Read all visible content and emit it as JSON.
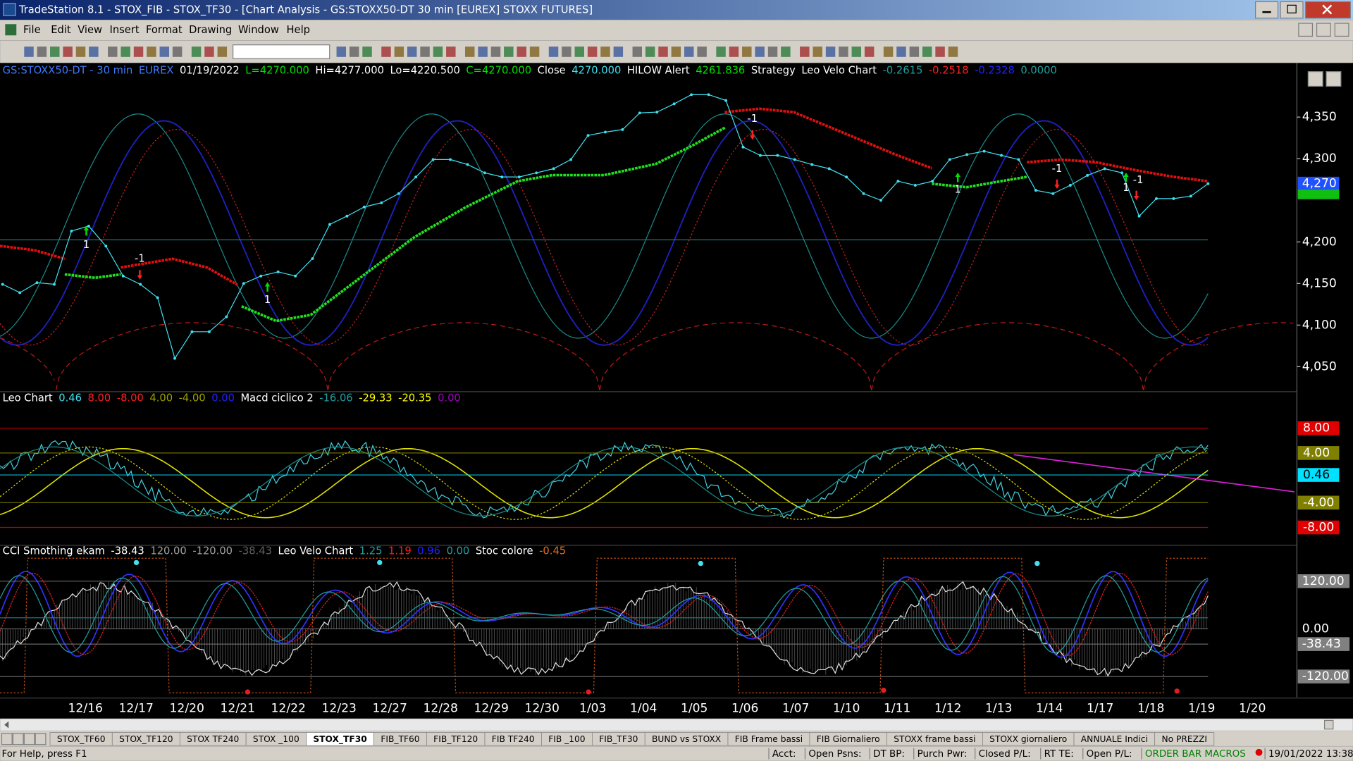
{
  "window": {
    "title": "TradeStation 8.1 - STOX_FIB - STOX_TF30 - [Chart Analysis - GS:STOXX50-DT  30 min  [EUREX] STOXX FUTURES]",
    "menu": [
      "File",
      "Edit",
      "View",
      "Insert",
      "Format",
      "Drawing",
      "Window",
      "Help"
    ]
  },
  "price_pane": {
    "header": [
      {
        "text": "GS:STOXX50-DT - 30 min",
        "color": "#3f7bff"
      },
      {
        "text": "EUREX",
        "color": "#3f7bff"
      },
      {
        "text": "01/19/2022",
        "color": "#ffffff"
      },
      {
        "text": "L=4270.000",
        "color": "#00e000"
      },
      {
        "text": "Hi=4277.000",
        "color": "#ffffff"
      },
      {
        "text": "Lo=4220.500",
        "color": "#ffffff"
      },
      {
        "text": "C=4270.000",
        "color": "#00e000"
      },
      {
        "text": "Close",
        "color": "#ffffff"
      },
      {
        "text": "4270.000",
        "color": "#3fe0f0"
      },
      {
        "text": "HILOW Alert",
        "color": "#ffffff"
      },
      {
        "text": "4261.836",
        "color": "#00e000"
      },
      {
        "text": "Strategy",
        "color": "#ffffff"
      },
      {
        "text": "Leo Velo Chart",
        "color": "#ffffff"
      },
      {
        "text": "-0.2615",
        "color": "#20a0a0"
      },
      {
        "text": "-0.2518",
        "color": "#ff2020"
      },
      {
        "text": "-0.2328",
        "color": "#2020ff"
      },
      {
        "text": "0.0000",
        "color": "#20a0a0"
      }
    ],
    "ylim": [
      4022,
      4414
    ],
    "yticks": [
      {
        "value": 4050,
        "label": "4,050"
      },
      {
        "value": 4100,
        "label": "4,100"
      },
      {
        "value": 4150,
        "label": "4,150"
      },
      {
        "value": 4200,
        "label": "4,200"
      },
      {
        "value": 4300,
        "label": "4,300"
      },
      {
        "value": 4350,
        "label": "4,350"
      }
    ],
    "last": {
      "value": 4270,
      "label": "4,270"
    },
    "color": "#3fe0f0",
    "values": [
      4149,
      4139,
      4151,
      4149,
      4213,
      4219,
      4195,
      4159,
      4149,
      4133,
      4060,
      4092,
      4092,
      4110,
      4150,
      4159,
      4164,
      4159,
      4180,
      4221,
      4231,
      4242,
      4247,
      4258,
      4278,
      4299,
      4299,
      4293,
      4283,
      4278,
      4278,
      4283,
      4288,
      4299,
      4328,
      4332,
      4335,
      4355,
      4356,
      4366,
      4377,
      4377,
      4370,
      4314,
      4304,
      4304,
      4299,
      4293,
      4288,
      4278,
      4258,
      4250,
      4273,
      4268,
      4273,
      4299,
      4305,
      4309,
      4304,
      4299,
      4262,
      4258,
      4268,
      4280,
      4288,
      4283,
      4231,
      4252,
      4252,
      4255,
      4270
    ],
    "signals": [
      "1",
      "-1",
      "1",
      "-1",
      "1",
      "-1",
      "1",
      "-1"
    ]
  },
  "osc_pane": {
    "header": [
      {
        "text": "Leo Chart",
        "color": "#ffffff"
      },
      {
        "text": "0.46",
        "color": "#3fe0f0"
      },
      {
        "text": "8.00",
        "color": "#ff2020"
      },
      {
        "text": "-8.00",
        "color": "#ff2020"
      },
      {
        "text": "4.00",
        "color": "#a0a000"
      },
      {
        "text": "-4.00",
        "color": "#a0a000"
      },
      {
        "text": "0.00",
        "color": "#2020ff"
      },
      {
        "text": "Macd ciclico 2",
        "color": "#ffffff"
      },
      {
        "text": "-16.06",
        "color": "#20a0a0"
      },
      {
        "text": "-29.33",
        "color": "#ffff00"
      },
      {
        "text": "-20.35",
        "color": "#ffff00"
      },
      {
        "text": "0.00",
        "color": "#a000c0"
      }
    ],
    "ylim": [
      -10.6,
      13.6
    ],
    "levels": [
      {
        "value": 8,
        "label": "8.00",
        "color": "#e00000"
      },
      {
        "value": 4,
        "label": "4.00",
        "color": "#808000"
      },
      {
        "value": 0.46,
        "label": "0.46",
        "color": "#00e0ff"
      },
      {
        "value": -4,
        "label": "-4.00",
        "color": "#808000"
      },
      {
        "value": -8,
        "label": "-8.00",
        "color": "#e00000"
      }
    ]
  },
  "cci_pane": {
    "header": [
      {
        "text": "CCI Smothing ekam",
        "color": "#ffffff"
      },
      {
        "text": "-38.43",
        "color": "#ffffff"
      },
      {
        "text": "120.00",
        "color": "#a0a0a0"
      },
      {
        "text": "-120.00",
        "color": "#a0a0a0"
      },
      {
        "text": "-38.43",
        "color": "#606060"
      },
      {
        "text": "Leo Velo Chart",
        "color": "#ffffff"
      },
      {
        "text": "1.25",
        "color": "#20a0a0"
      },
      {
        "text": "1.19",
        "color": "#ff2020"
      },
      {
        "text": "0.96",
        "color": "#2020ff"
      },
      {
        "text": "0.00",
        "color": "#20a0a0"
      },
      {
        "text": "Stoc colore",
        "color": "#ffffff"
      },
      {
        "text": "-0.45",
        "color": "#e07020"
      }
    ],
    "ylim": [
      -172,
      206
    ],
    "levels": [
      {
        "value": 120,
        "label": "120.00",
        "color": "#808080"
      },
      {
        "value": 0,
        "label": "0.00",
        "color": "#000000"
      },
      {
        "value": -38.43,
        "label": "-38.43",
        "color": "#808080"
      },
      {
        "value": -120,
        "label": "-120.00",
        "color": "#808080"
      }
    ]
  },
  "dates": [
    "12/16",
    "12/17",
    "12/20",
    "12/21",
    "12/22",
    "12/23",
    "12/27",
    "12/28",
    "12/29",
    "12/30",
    "1/03",
    "1/04",
    "1/05",
    "1/06",
    "1/07",
    "1/10",
    "1/11",
    "1/12",
    "1/13",
    "1/14",
    "1/17",
    "1/18",
    "1/19",
    "1/20"
  ],
  "tabs": [
    {
      "label": "STOX_TF60",
      "active": false
    },
    {
      "label": "STOX_TF120",
      "active": false
    },
    {
      "label": "STOX TF240",
      "active": false
    },
    {
      "label": "STOX _100",
      "active": false
    },
    {
      "label": "STOX_TF30",
      "active": true
    },
    {
      "label": "FIB_TF60",
      "active": false
    },
    {
      "label": "FIB_TF120",
      "active": false
    },
    {
      "label": "FIB TF240",
      "active": false
    },
    {
      "label": "FIB _100",
      "active": false
    },
    {
      "label": "FIB_TF30",
      "active": false
    },
    {
      "label": "BUND vs STOXX",
      "active": false
    },
    {
      "label": "FIB Frame bassi",
      "active": false
    },
    {
      "label": "FIB Giornaliero",
      "active": false
    },
    {
      "label": "STOXX frame bassi",
      "active": false
    },
    {
      "label": "STOXX giornaliero",
      "active": false
    },
    {
      "label": "ANNUALE Indici",
      "active": false
    },
    {
      "label": "No PREZZI",
      "active": false
    }
  ],
  "status": [
    "For Help, press F1",
    "Acct:",
    "Open Psns:",
    "DT BP:",
    "Purch Pwr:",
    "Closed P/L:",
    "RT TE:",
    "Open P/L:",
    "ORDER BAR MACROS",
    "19/01/2022 13:38"
  ]
}
